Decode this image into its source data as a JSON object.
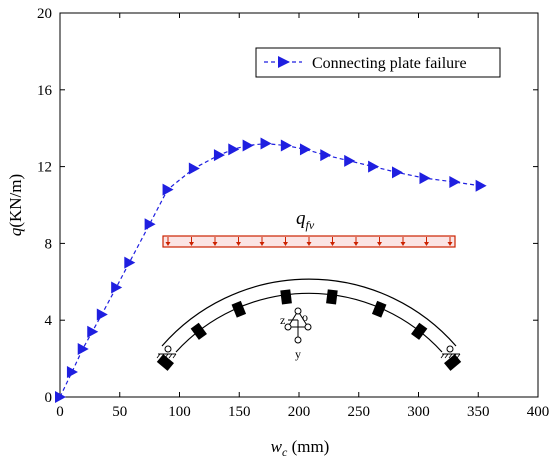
{
  "chart_data": {
    "type": "line",
    "x_label": {
      "var": "w",
      "sub": "c",
      "unit": " (mm)"
    },
    "y_label": {
      "var": "q",
      "unit": "(KN/m)"
    },
    "xlim": [
      0,
      400
    ],
    "ylim": [
      0,
      20
    ],
    "x_ticks": [
      "0",
      "50",
      "100",
      "150",
      "200",
      "250",
      "300",
      "350",
      "400"
    ],
    "y_ticks": [
      "0",
      "4",
      "8",
      "12",
      "16",
      "20"
    ],
    "legend_position": "top-right",
    "series": [
      {
        "name": "Connecting plate failure",
        "color": "#1f1fe0",
        "marker": "triangle-right",
        "line_style": "dashed",
        "x": [
          0,
          10,
          19,
          27,
          35,
          47,
          58,
          75,
          90,
          112,
          133,
          145,
          157,
          172,
          189,
          205,
          222,
          242,
          262,
          282,
          305,
          330,
          352
        ],
        "y": [
          0,
          1.3,
          2.5,
          3.4,
          4.3,
          5.7,
          7.0,
          9.0,
          10.8,
          11.9,
          12.6,
          12.9,
          13.1,
          13.2,
          13.1,
          12.9,
          12.6,
          12.3,
          12.0,
          11.7,
          11.4,
          11.2,
          11.0
        ]
      }
    ],
    "inset": {
      "load_symbol": "q",
      "load_subscript": "fv",
      "axis_z": "z",
      "axis_y": "y",
      "origin": "o",
      "load_color": "#cc2200"
    }
  }
}
